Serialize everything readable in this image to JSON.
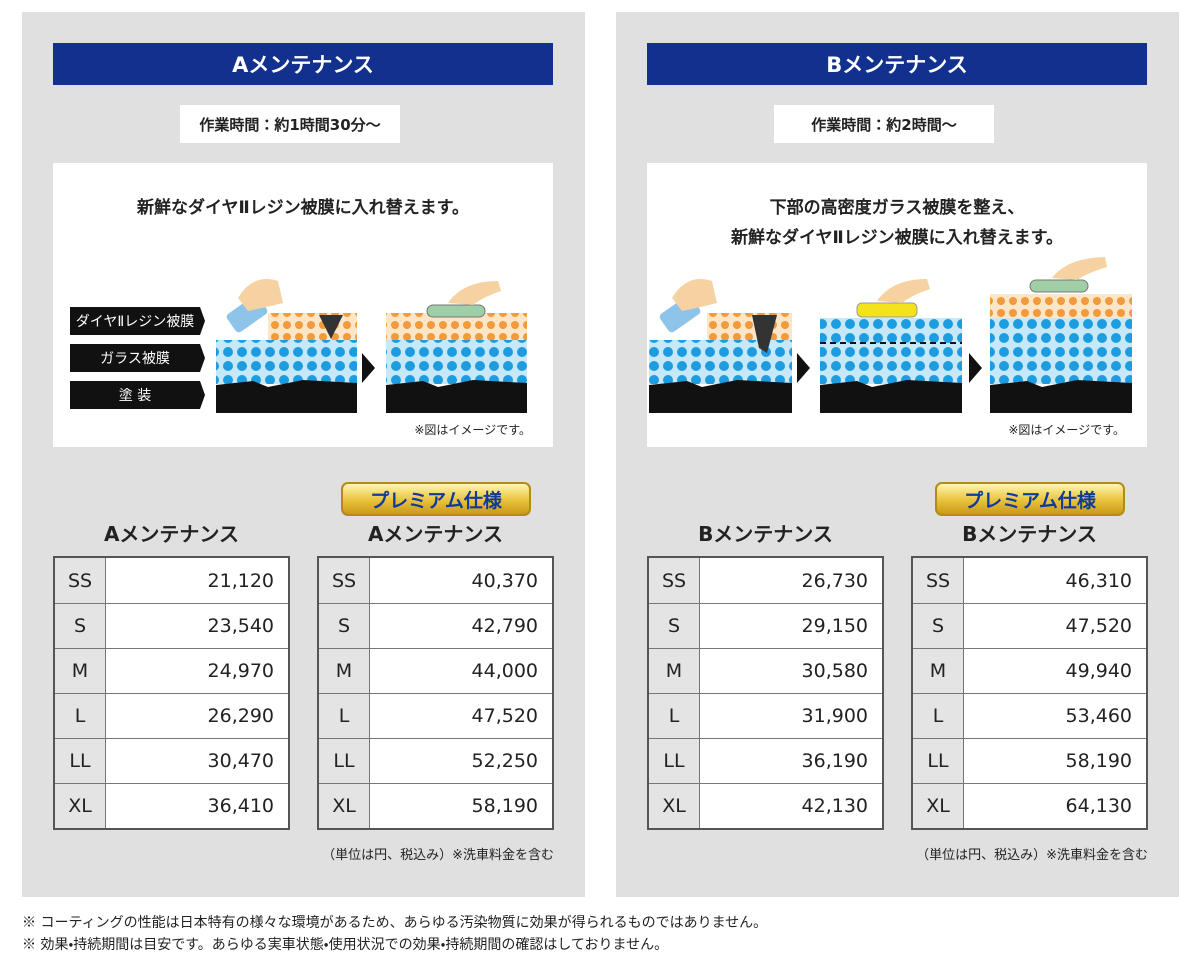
{
  "panels": [
    {
      "title": "Aメンテナンス",
      "time": "作業時間：約1時間30分〜",
      "description": [
        "新鮮なダイヤⅡレジン被膜に入れ替えます。"
      ],
      "layers": [
        "ダイヤⅡレジン被膜",
        "ガラス被膜",
        "塗 装"
      ],
      "image_note": "※図はイメージです。",
      "tables": [
        {
          "heading": "Aメンテナンス",
          "rows": [
            [
              "SS",
              "21,120"
            ],
            [
              "S",
              "23,540"
            ],
            [
              "M",
              "24,970"
            ],
            [
              "L",
              "26,290"
            ],
            [
              "LL",
              "30,470"
            ],
            [
              "XL",
              "36,410"
            ]
          ]
        },
        {
          "badge": "プレミアム仕様",
          "heading": "Aメンテナンス",
          "rows": [
            [
              "SS",
              "40,370"
            ],
            [
              "S",
              "42,790"
            ],
            [
              "M",
              "44,000"
            ],
            [
              "L",
              "47,520"
            ],
            [
              "LL",
              "52,250"
            ],
            [
              "XL",
              "58,190"
            ]
          ]
        }
      ],
      "unit_note": "（単位は円、税込み）※洗車料金を含む"
    },
    {
      "title": "Bメンテナンス",
      "time": "作業時間：約2時間〜",
      "description": [
        "下部の高密度ガラス被膜を整え、",
        "新鮮なダイヤⅡレジン被膜に入れ替えます。"
      ],
      "image_note": "※図はイメージです。",
      "tables": [
        {
          "heading": "Bメンテナンス",
          "rows": [
            [
              "SS",
              "26,730"
            ],
            [
              "S",
              "29,150"
            ],
            [
              "M",
              "30,580"
            ],
            [
              "L",
              "31,900"
            ],
            [
              "LL",
              "36,190"
            ],
            [
              "XL",
              "42,130"
            ]
          ]
        },
        {
          "badge": "プレミアム仕様",
          "heading": "Bメンテナンス",
          "rows": [
            [
              "SS",
              "46,310"
            ],
            [
              "S",
              "47,520"
            ],
            [
              "M",
              "49,940"
            ],
            [
              "L",
              "53,460"
            ],
            [
              "LL",
              "58,190"
            ],
            [
              "XL",
              "64,130"
            ]
          ]
        }
      ],
      "unit_note": "（単位は円、税込み）※洗車料金を含む"
    }
  ],
  "footnotes": [
    "※ コーティングの性能は日本特有の様々な環境があるため、あらゆる汚染物質に効果が得られるものではありません。",
    "※ 効果・持続期間は目安です。あらゆる実車状態・使用状況での効果・持続期間の確認はしておりません。"
  ]
}
